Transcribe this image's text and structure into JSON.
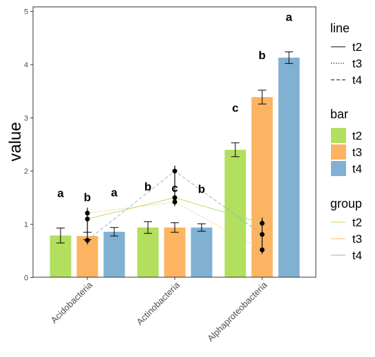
{
  "chart_data": {
    "type": "bar",
    "ylabel": "value",
    "xlabel": "",
    "ylim": [
      0,
      5.1
    ],
    "yticks": [
      "0",
      "1",
      "2",
      "3",
      "4",
      "5"
    ],
    "categories": [
      "Acidobacteria",
      "Actinobacteria",
      "Alphaproteobacteria"
    ],
    "grid": false,
    "series": [
      {
        "name": "t2",
        "color": "#b2df5e",
        "values": [
          0.79,
          0.94,
          2.4
        ],
        "err": [
          0.14,
          0.11,
          0.13
        ],
        "labels": [
          "a",
          "b",
          "c"
        ]
      },
      {
        "name": "t3",
        "color": "#fdb462",
        "values": [
          0.78,
          0.94,
          3.39
        ],
        "err": [
          0.07,
          0.09,
          0.13
        ],
        "labels": [
          "b",
          "c",
          "b"
        ]
      },
      {
        "name": "t4",
        "color": "#80b1d3",
        "values": [
          0.86,
          0.94,
          4.13
        ],
        "err": [
          0.08,
          0.07,
          0.11
        ],
        "labels": [
          "a",
          "b",
          "a"
        ]
      }
    ],
    "points": [
      {
        "category": "Acidobacteria",
        "y": [
          0.7,
          1.1,
          1.21
        ]
      },
      {
        "category": "Actinobacteria",
        "y": [
          1.42,
          1.5,
          2.0
        ]
      },
      {
        "category": "Alphaproteobacteria",
        "y": [
          0.52,
          0.81,
          1.02
        ]
      }
    ],
    "lines": [
      {
        "name": "t2",
        "linetype": "solid",
        "color": "#b2df5e",
        "y": [
          1.1,
          1.5,
          1.02
        ]
      },
      {
        "name": "t3",
        "linetype": "dotted",
        "color": "#fdb462",
        "y": [
          1.21,
          1.42,
          0.52
        ]
      },
      {
        "name": "t4",
        "linetype": "dashed",
        "color": "#80b1d3",
        "y": [
          0.7,
          2.0,
          0.81
        ]
      }
    ],
    "legends": [
      {
        "title": "line",
        "kind": "linetype",
        "entries": [
          "t2",
          "t3",
          "t4"
        ]
      },
      {
        "title": "bar",
        "kind": "fill",
        "entries": [
          "t2",
          "t3",
          "t4"
        ]
      },
      {
        "title": "group",
        "kind": "color",
        "entries": [
          "t2",
          "t3",
          "t4"
        ]
      }
    ],
    "legend_position": "right"
  }
}
